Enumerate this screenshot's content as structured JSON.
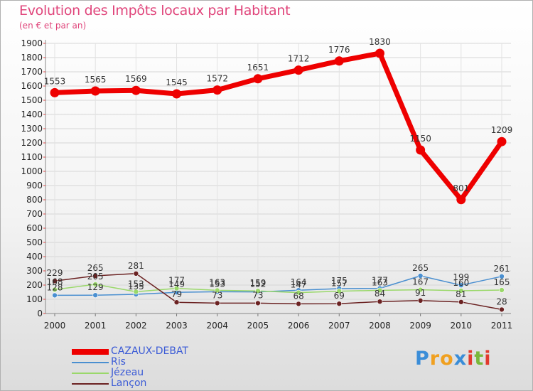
{
  "title": "Evolution des Impôts locaux par Habitant",
  "subtitle": "(en € et par an)",
  "logo": {
    "text": "Proxiti",
    "letters": [
      "P",
      "r",
      "o",
      "x",
      "i",
      "t",
      "i"
    ],
    "colors": [
      "#3a8dd8",
      "#f0a020",
      "#f0a020",
      "#3a8dd8",
      "#e23a2e",
      "#7ab83a",
      "#e23a2e"
    ]
  },
  "chart_data": {
    "type": "line",
    "title": "Evolution des Impôts locaux par Habitant",
    "subtitle": "(en € et par an)",
    "xlabel": "",
    "ylabel": "",
    "ylim": [
      0,
      1900
    ],
    "yticks": [
      0,
      100,
      200,
      300,
      400,
      500,
      600,
      700,
      800,
      900,
      1000,
      1100,
      1200,
      1300,
      1400,
      1500,
      1600,
      1700,
      1800,
      1900
    ],
    "categories": [
      "2000",
      "2001",
      "2002",
      "2003",
      "2004",
      "2005",
      "2006",
      "2007",
      "2008",
      "2009",
      "2010",
      "2011"
    ],
    "legend_position": "bottom-left",
    "series": [
      {
        "name": "Ris",
        "color": "#4a8fd0",
        "values": [
          128,
          129,
          135,
          149,
          153,
          152,
          164,
          175,
          177,
          265,
          199,
          261
        ]
      },
      {
        "name": "Jézeau",
        "color": "#9ad86a",
        "values": [
          168,
          205,
          153,
          177,
          163,
          159,
          147,
          157,
          163,
          167,
          160,
          165
        ]
      },
      {
        "name": "Lançon",
        "color": "#6b2222",
        "values": [
          229,
          265,
          281,
          79,
          73,
          73,
          68,
          69,
          84,
          91,
          81,
          28
        ]
      },
      {
        "name": "CAZAUX-DEBAT",
        "color": "#ee0000",
        "values": [
          1553,
          1565,
          1569,
          1545,
          1572,
          1651,
          1712,
          1776,
          1830,
          1150,
          801,
          1209
        ]
      }
    ]
  }
}
